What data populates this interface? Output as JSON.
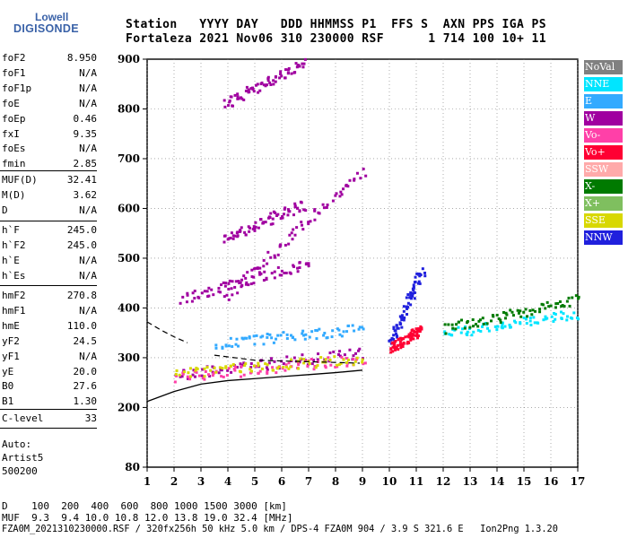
{
  "logo": {
    "line1": "Lowell",
    "line2": "DIGISONDE"
  },
  "header": {
    "labels": "Station   YYYY DAY   DDD HHMMSS P1  FFS S  AXN PPS IGA PS",
    "values": "Fortaleza 2021 Nov06 310 230000 RSF      1 714 100 10+ 11"
  },
  "params_group1": [
    {
      "key": "foF2",
      "value": "8.950"
    },
    {
      "key": "foF1",
      "value": "N/A"
    },
    {
      "key": "foF1p",
      "value": "N/A"
    },
    {
      "key": "foE",
      "value": "N/A"
    },
    {
      "key": "foEp",
      "value": "0.46"
    },
    {
      "key": "fxI",
      "value": "9.35"
    },
    {
      "key": "foEs",
      "value": "N/A"
    },
    {
      "key": "fmin",
      "value": "2.85"
    }
  ],
  "params_group2": [
    {
      "key": "MUF(D)",
      "value": "32.41"
    },
    {
      "key": "M(D)",
      "value": "3.62"
    },
    {
      "key": "D",
      "value": "N/A"
    }
  ],
  "params_group3": [
    {
      "key": "h`F",
      "value": "245.0"
    },
    {
      "key": "h`F2",
      "value": "245.0"
    },
    {
      "key": "h`E",
      "value": "N/A"
    },
    {
      "key": "h`Es",
      "value": "N/A"
    }
  ],
  "params_group4": [
    {
      "key": "hmF2",
      "value": "270.8"
    },
    {
      "key": "hmF1",
      "value": "N/A"
    },
    {
      "key": "hmE",
      "value": "110.0"
    },
    {
      "key": "yF2",
      "value": "24.5"
    },
    {
      "key": "yF1",
      "value": "N/A"
    },
    {
      "key": "yE",
      "value": "20.0"
    },
    {
      "key": "B0",
      "value": "27.6"
    },
    {
      "key": "B1",
      "value": "1.30"
    }
  ],
  "clevel": {
    "key": "C-level",
    "value": "33"
  },
  "auto": {
    "line1": "Auto:",
    "line2": "Artist5",
    "line3": "500200"
  },
  "legend": [
    {
      "label": "NoVal",
      "color": "#808080"
    },
    {
      "label": "NNE",
      "color": "#00e5ff"
    },
    {
      "label": "E",
      "color": "#33aaff"
    },
    {
      "label": "W",
      "color": "#a000a0"
    },
    {
      "label": "Vo-",
      "color": "#ff40a8"
    },
    {
      "label": "Vo+",
      "color": "#ff0033"
    },
    {
      "label": "SSW",
      "color": "#ffaaaa"
    },
    {
      "label": "X-",
      "color": "#007a00"
    },
    {
      "label": "X+",
      "color": "#7fbf5f"
    },
    {
      "label": "SSE",
      "color": "#d8d800"
    },
    {
      "label": "NNW",
      "color": "#2020dd"
    }
  ],
  "footer": {
    "d_row": "D    100  200  400  600  800 1000 1500 3000 [km]",
    "muf_row": "MUF  9.3  9.4 10.0 10.8 12.0 13.8 19.0 32.4 [MHz]",
    "file_row": "FZA0M_2021310230000.RSF / 320fx256h 50 kHz 5.0 km / DPS-4 FZA0M 904 / 3.9 S 321.6 E   Ion2Png 1.3.20"
  },
  "chart_data": {
    "type": "scatter",
    "title": "",
    "xlabel": "",
    "ylabel": "",
    "xlim": [
      1,
      17
    ],
    "ylim": [
      80,
      900
    ],
    "x_ticks": [
      1,
      2,
      3,
      4,
      5,
      6,
      7,
      8,
      9,
      10,
      11,
      12,
      13,
      14,
      15,
      16,
      17
    ],
    "y_ticks": [
      80,
      200,
      300,
      400,
      500,
      600,
      700,
      800,
      900
    ],
    "trace_solid": {
      "x": [
        1,
        2,
        3,
        4,
        5,
        6,
        7,
        8,
        9
      ],
      "y": [
        212,
        232,
        247,
        254,
        258,
        262,
        266,
        270,
        275
      ]
    },
    "trace_dashed": [
      {
        "x": [
          1,
          1.5,
          2,
          2.5
        ],
        "y": [
          372,
          356,
          342,
          330
        ]
      },
      {
        "x": [
          3.5,
          5,
          7,
          8.3,
          8.9
        ],
        "y": [
          305,
          295,
          292,
          290,
          289
        ]
      }
    ],
    "series": [
      {
        "name": "W",
        "x_range": [
          2.0,
          9.0
        ],
        "y_start": 268,
        "y_end": 312
      },
      {
        "name": "W",
        "x_range": [
          3.8,
          9.0
        ],
        "y_start": 420,
        "y_end": 676
      },
      {
        "name": "W",
        "x_range": [
          3.8,
          6.8
        ],
        "y_start": 810,
        "y_end": 895
      },
      {
        "name": "W",
        "x_range": [
          2.2,
          7.0
        ],
        "y_start": 420,
        "y_end": 492
      },
      {
        "name": "W",
        "x_range": [
          3.8,
          6.8
        ],
        "y_start": 540,
        "y_end": 610
      },
      {
        "name": "Vo-",
        "x_range": [
          2.0,
          9.0
        ],
        "y_start": 262,
        "y_end": 300
      },
      {
        "name": "E",
        "x_range": [
          3.5,
          9.0
        ],
        "y_start": 330,
        "y_end": 360
      },
      {
        "name": "NNE",
        "x_range": [
          12.0,
          17.0
        ],
        "y_start": 350,
        "y_end": 390
      },
      {
        "name": "NNW",
        "x_range": [
          10.0,
          11.2
        ],
        "y_start": 330,
        "y_end": 480
      },
      {
        "name": "SSE",
        "x_range": [
          2.0,
          9.0
        ],
        "y_start": 270,
        "y_end": 300
      },
      {
        "name": "X-",
        "x_range": [
          12.0,
          17.0
        ],
        "y_start": 360,
        "y_end": 420
      },
      {
        "name": "Vo+",
        "x_range": [
          10.0,
          11.2
        ],
        "y_start": 320,
        "y_end": 360
      }
    ]
  }
}
